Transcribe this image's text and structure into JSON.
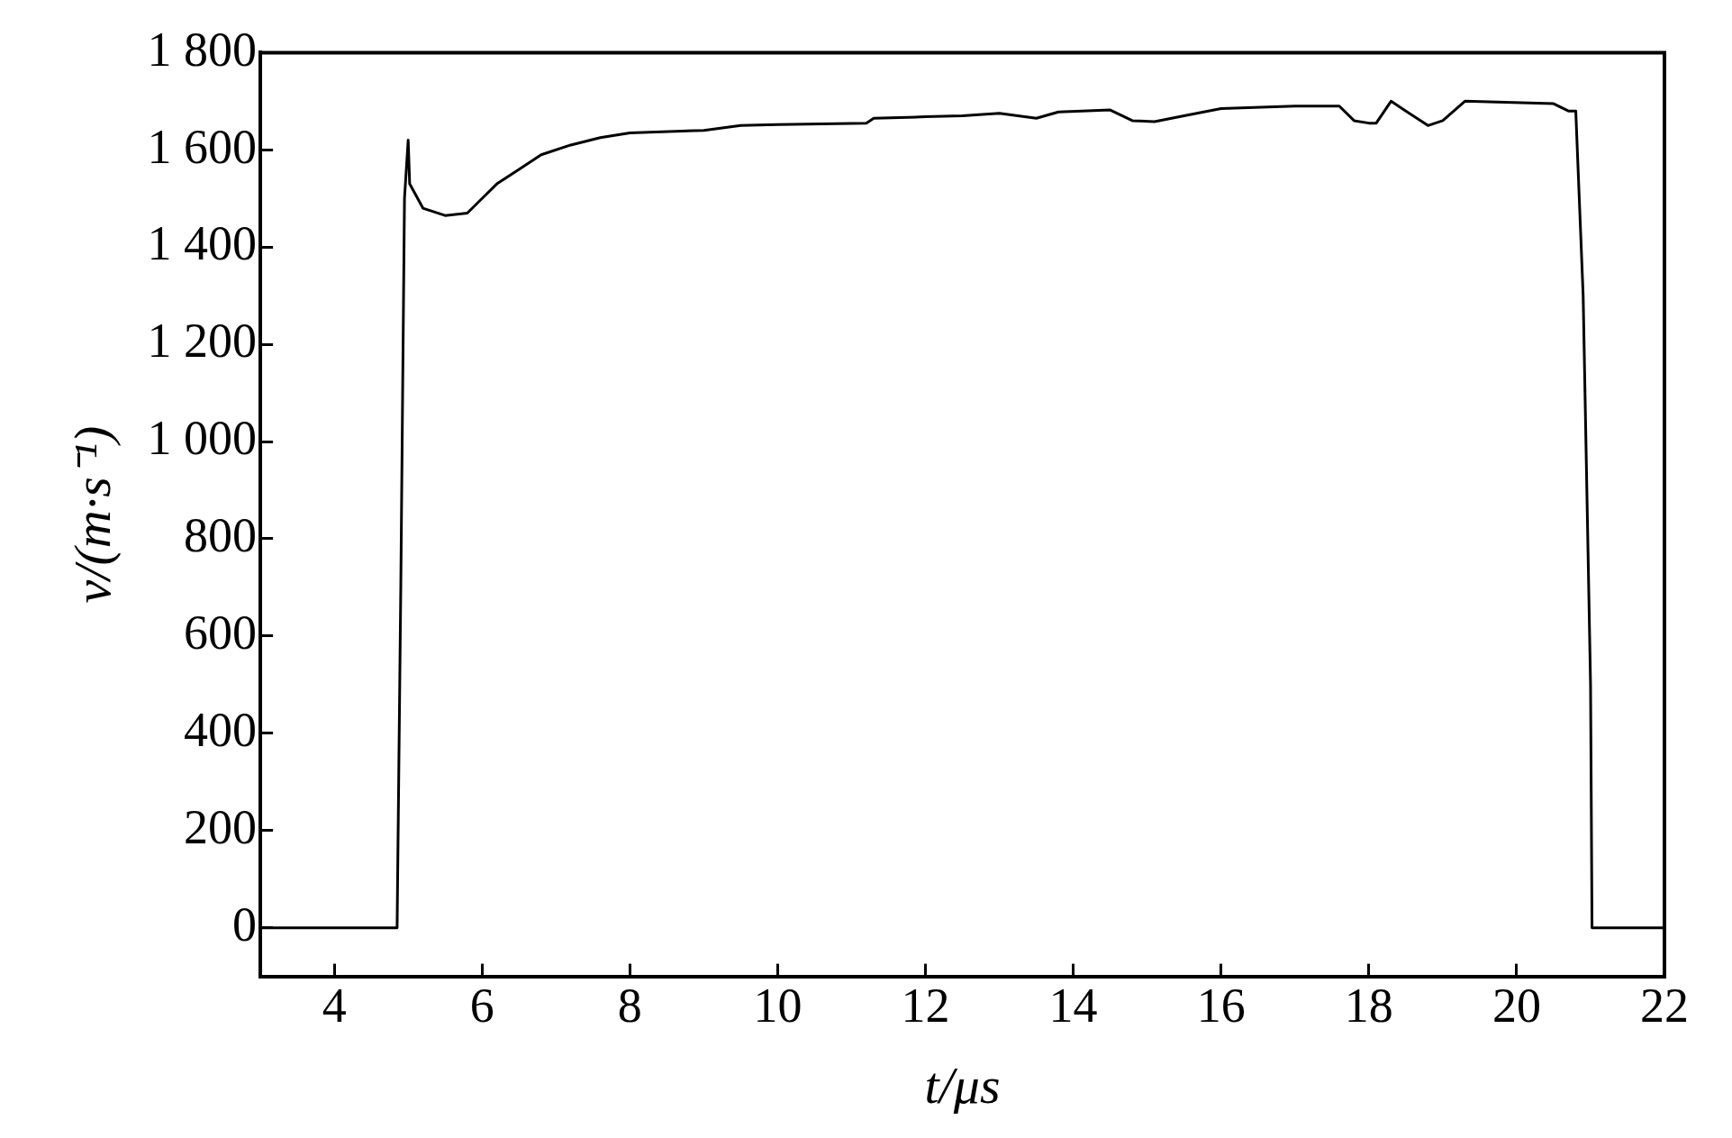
{
  "chart_data": {
    "type": "line",
    "xlabel": "t/μs",
    "ylabel": "v/(m·s⁻¹)",
    "x": [
      3,
      4.85,
      4.9,
      4.95,
      5.0,
      5.02,
      5.2,
      5.5,
      5.8,
      6.0,
      6.2,
      6.5,
      6.8,
      7.2,
      7.6,
      8,
      9,
      9.5,
      10,
      11.2,
      11.3,
      12,
      12.5,
      13,
      13.5,
      13.8,
      14.5,
      14.8,
      15.1,
      15.5,
      16,
      17,
      17.6,
      17.8,
      18,
      18.1,
      18.3,
      18.5,
      18.8,
      19,
      19.3,
      20.5,
      20.7,
      20.8,
      20.9,
      21.0,
      21.02,
      22
    ],
    "series": [
      {
        "color": "#000000",
        "values": [
          0,
          0,
          700,
          1500,
          1620,
          1530,
          1480,
          1465,
          1470,
          1500,
          1530,
          1560,
          1590,
          1610,
          1625,
          1635,
          1640,
          1650,
          1652,
          1655,
          1665,
          1668,
          1670,
          1675,
          1665,
          1678,
          1682,
          1660,
          1658,
          1670,
          1685,
          1690,
          1690,
          1660,
          1655,
          1655,
          1700,
          1680,
          1650,
          1660,
          1700,
          1695,
          1680,
          1680,
          1300,
          500,
          0,
          0
        ]
      }
    ],
    "xlim": [
      3,
      22
    ],
    "xticks": [
      4,
      6,
      8,
      10,
      12,
      14,
      16,
      18,
      20,
      22
    ],
    "ylim": [
      -100,
      1800
    ],
    "yticks": [
      0,
      200,
      400,
      600,
      800,
      {
        "value": 1000,
        "label": "1 000"
      },
      {
        "value": 1200,
        "label": "1 200"
      },
      {
        "value": 1400,
        "label": "1 400"
      },
      {
        "value": 1600,
        "label": "1 600"
      },
      {
        "value": 1800,
        "label": "1 800"
      }
    ],
    "grid": false,
    "legend": false,
    "marker": "none",
    "line_style": "solid"
  }
}
